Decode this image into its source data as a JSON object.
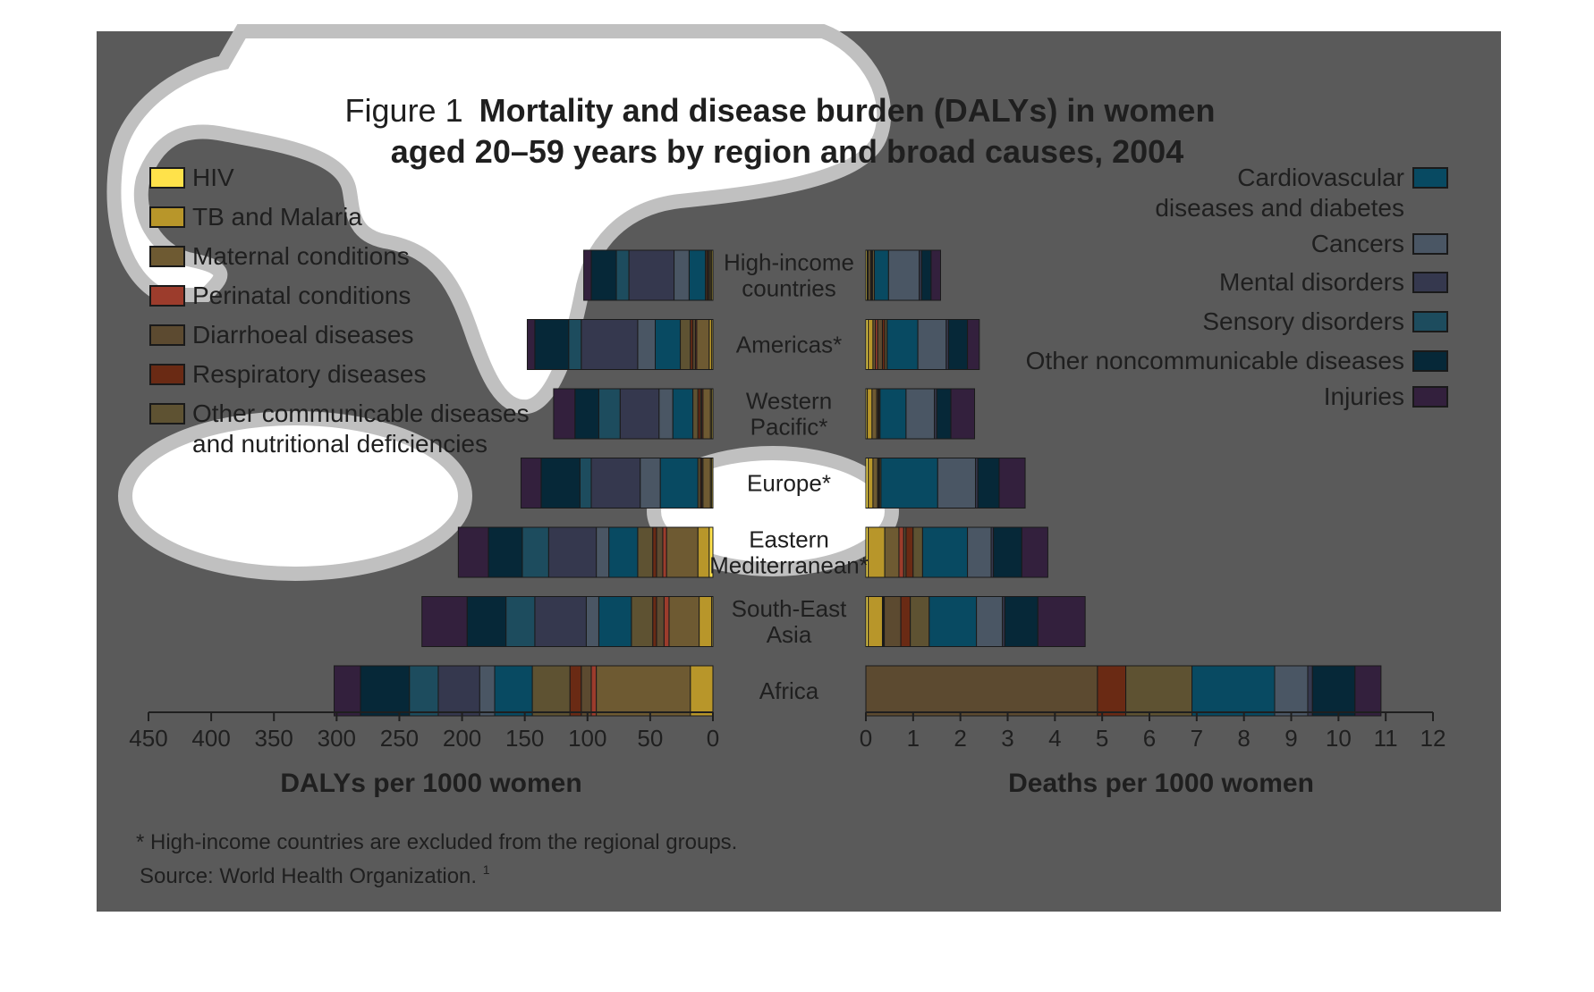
{
  "title": {
    "prefix": "Figure 1",
    "bold_line1": "Mortality and disease burden (DALYs) in women",
    "bold_line2": "aged 20–59 years by region and broad causes, 2004"
  },
  "footnote": "* High-income countries are excluded from the regional groups.",
  "source": "Source: World Health Organization.",
  "source_ref": "1",
  "colors": {
    "panel": "#5a5a5a",
    "highlight_stroke": "#c0c0c0",
    "highlight_fill": "#ffffff",
    "text": "#1f1f1f"
  },
  "chart_data": [
    {
      "type": "bar",
      "orientation": "horizontal",
      "stacked": true,
      "direction": "right-to-left",
      "xlabel": "DALYs per 1000 women",
      "ylabel": "",
      "xlim": [
        0,
        450
      ],
      "xticks": [
        "450",
        "400",
        "350",
        "300",
        "250",
        "200",
        "150",
        "100",
        "50",
        "0"
      ],
      "categories": [
        "High-income countries",
        "Americas*",
        "Western Pacific*",
        "Europe*",
        "Eastern Mediterranean*",
        "South-East Asia",
        "Africa"
      ],
      "series": [
        {
          "name": "HIV",
          "color": "#ffe24a",
          "values": [
            1,
            1,
            1,
            1,
            3,
            1,
            0
          ]
        },
        {
          "name": "TB and Malaria",
          "color": "#b8962a",
          "values": [
            1,
            2,
            1,
            1,
            9,
            10,
            18
          ]
        },
        {
          "name": "Maternal conditions",
          "color": "#6e5a32",
          "values": [
            1,
            10,
            6,
            6,
            25,
            24,
            75
          ]
        },
        {
          "name": "Perinatal conditions",
          "color": "#9c3c2c",
          "values": [
            0,
            1,
            1,
            0,
            3,
            4,
            4
          ]
        },
        {
          "name": "Diarrhoeal diseases",
          "color": "#5c4a30",
          "values": [
            1,
            2,
            1,
            1,
            5,
            6,
            8
          ]
        },
        {
          "name": "Respiratory diseases",
          "color": "#6a2a14",
          "values": [
            1,
            2,
            2,
            1,
            3,
            3,
            9
          ]
        },
        {
          "name": "Other communicable diseases and nutritional deficiencies",
          "color": "#5e5232",
          "values": [
            1,
            8,
            4,
            2,
            12,
            17,
            30
          ]
        },
        {
          "name": "Cardiovascular diseases and diabetes",
          "color": "#084a62",
          "values": [
            13,
            20,
            16,
            30,
            23,
            26,
            30
          ]
        },
        {
          "name": "Cancers",
          "color": "#4a5664",
          "values": [
            12,
            14,
            11,
            16,
            10,
            10,
            12
          ]
        },
        {
          "name": "Mental disorders",
          "color": "#35384e",
          "values": [
            36,
            45,
            31,
            39,
            38,
            41,
            33
          ]
        },
        {
          "name": "Sensory disorders",
          "color": "#1d4c5e",
          "values": [
            10,
            10,
            17,
            9,
            21,
            23,
            23
          ]
        },
        {
          "name": "Other noncommunicable diseases",
          "color": "#062838",
          "values": [
            20,
            27,
            19,
            31,
            27,
            31,
            39
          ]
        },
        {
          "name": "Injuries",
          "color": "#33203d",
          "values": [
            6,
            6,
            17,
            16,
            24,
            36,
            21
          ]
        }
      ]
    },
    {
      "type": "bar",
      "orientation": "horizontal",
      "stacked": true,
      "direction": "left-to-right",
      "xlabel": "Deaths per 1000 women",
      "ylabel": "",
      "xlim": [
        0,
        12
      ],
      "xticks": [
        "0",
        "1",
        "2",
        "3",
        "4",
        "5",
        "6",
        "7",
        "8",
        "9",
        "10",
        "11",
        "12"
      ],
      "categories": [
        "High-income countries",
        "Americas*",
        "Western Pacific*",
        "Europe*",
        "Eastern Mediterranean*",
        "South-East Asia",
        "Africa"
      ],
      "series": [
        {
          "name": "HIV",
          "color": "#ffe24a",
          "values": [
            0.03,
            0.05,
            0.03,
            0.05,
            0.05,
            0.05,
            0
          ]
        },
        {
          "name": "TB and Malaria",
          "color": "#b8962a",
          "values": [
            0.02,
            0.1,
            0.1,
            0.1,
            0.35,
            0.3,
            0
          ]
        },
        {
          "name": "Maternal conditions",
          "color": "#6e5a32",
          "values": [
            0.05,
            0.05,
            0.1,
            0.1,
            0.3,
            0.02,
            0
          ]
        },
        {
          "name": "Perinatal conditions",
          "color": "#9c3c2c",
          "values": [
            0,
            0.05,
            0,
            0,
            0.1,
            0.02,
            0
          ]
        },
        {
          "name": "Diarrhoeal diseases",
          "color": "#5c4a30",
          "values": [
            0.02,
            0.1,
            0.03,
            0.02,
            0.05,
            0.35,
            4.9
          ]
        },
        {
          "name": "Respiratory diseases",
          "color": "#6a2a14",
          "values": [
            0.02,
            0.05,
            0.02,
            0.02,
            0.15,
            0.2,
            0.6
          ]
        },
        {
          "name": "Other communicable diseases and nutritional deficiencies",
          "color": "#5e5232",
          "values": [
            0.04,
            0.05,
            0.02,
            0.03,
            0.2,
            0.4,
            1.4
          ]
        },
        {
          "name": "Cardiovascular diseases and diabetes",
          "color": "#084a62",
          "values": [
            0.3,
            0.65,
            0.55,
            1.2,
            0.95,
            1.0,
            1.75
          ]
        },
        {
          "name": "Cancers",
          "color": "#4a5664",
          "values": [
            0.65,
            0.6,
            0.6,
            0.8,
            0.5,
            0.55,
            0.7
          ]
        },
        {
          "name": "Mental disorders",
          "color": "#35384e",
          "values": [
            0.05,
            0.05,
            0.05,
            0.05,
            0.05,
            0.05,
            0.1
          ]
        },
        {
          "name": "Sensory disorders",
          "color": "#1d4c5e",
          "values": [
            0,
            0,
            0,
            0,
            0,
            0,
            0
          ]
        },
        {
          "name": "Other noncommunicable diseases",
          "color": "#062838",
          "values": [
            0.2,
            0.4,
            0.3,
            0.45,
            0.6,
            0.7,
            0.9
          ]
        },
        {
          "name": "Injuries",
          "color": "#33203d",
          "values": [
            0.2,
            0.25,
            0.5,
            0.55,
            0.55,
            1.0,
            0.55
          ]
        }
      ]
    }
  ],
  "legend_left": [
    {
      "label": "HIV",
      "color": "#ffe24a"
    },
    {
      "label": "TB and Malaria",
      "color": "#b8962a"
    },
    {
      "label": "Maternal conditions",
      "color": "#6e5a32"
    },
    {
      "label": "Perinatal conditions",
      "color": "#9c3c2c"
    },
    {
      "label": "Diarrhoeal diseases",
      "color": "#5c4a30"
    },
    {
      "label": "Respiratory diseases",
      "color": "#6a2a14"
    },
    {
      "label": "Other communicable diseases",
      "label2": "and nutritional deficiencies",
      "color": "#5e5232"
    }
  ],
  "legend_right": [
    {
      "label": "Cardiovascular",
      "label2": "diseases and diabetes",
      "color": "#084a62"
    },
    {
      "label": "Cancers",
      "color": "#4a5664"
    },
    {
      "label": "Mental disorders",
      "color": "#35384e"
    },
    {
      "label": "Sensory disorders",
      "color": "#1d4c5e"
    },
    {
      "label": "Other noncommunicable diseases",
      "color": "#062838"
    },
    {
      "label": "Injuries",
      "color": "#33203d"
    }
  ],
  "region_labels": [
    [
      "High-income",
      "countries"
    ],
    [
      "Americas*"
    ],
    [
      "Western",
      "Pacific*"
    ],
    [
      "Europe*"
    ],
    [
      "Eastern",
      "Mediterranean*"
    ],
    [
      "South-East",
      "Asia"
    ],
    [
      "Africa"
    ]
  ]
}
